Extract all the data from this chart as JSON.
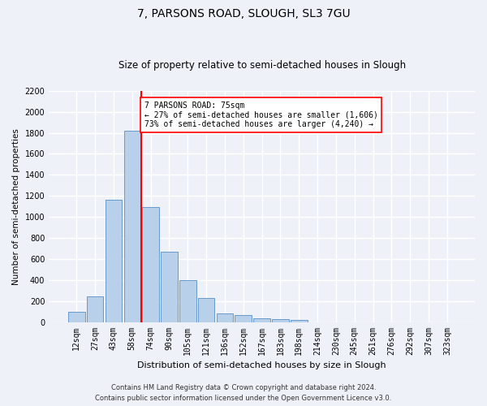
{
  "title": "7, PARSONS ROAD, SLOUGH, SL3 7GU",
  "subtitle": "Size of property relative to semi-detached houses in Slough",
  "xlabel": "Distribution of semi-detached houses by size in Slough",
  "ylabel": "Number of semi-detached properties",
  "categories": [
    "12sqm",
    "27sqm",
    "43sqm",
    "58sqm",
    "74sqm",
    "90sqm",
    "105sqm",
    "121sqm",
    "136sqm",
    "152sqm",
    "167sqm",
    "183sqm",
    "198sqm",
    "214sqm",
    "230sqm",
    "245sqm",
    "261sqm",
    "276sqm",
    "292sqm",
    "307sqm",
    "323sqm"
  ],
  "values": [
    100,
    240,
    1160,
    1820,
    1090,
    670,
    400,
    230,
    80,
    65,
    35,
    25,
    20,
    0,
    0,
    0,
    0,
    0,
    0,
    0,
    0
  ],
  "bar_color": "#b8d0ea",
  "bar_edge_color": "#6699cc",
  "vline_pos": 3.5,
  "vline_color": "red",
  "annotation_text": "7 PARSONS ROAD: 75sqm\n← 27% of semi-detached houses are smaller (1,606)\n73% of semi-detached houses are larger (4,240) →",
  "annotation_box_color": "white",
  "annotation_box_edge_color": "red",
  "ylim": [
    0,
    2200
  ],
  "yticks": [
    0,
    200,
    400,
    600,
    800,
    1000,
    1200,
    1400,
    1600,
    1800,
    2000,
    2200
  ],
  "footer_line1": "Contains HM Land Registry data © Crown copyright and database right 2024.",
  "footer_line2": "Contains public sector information licensed under the Open Government Licence v3.0.",
  "background_color": "#eef2f8",
  "grid_color": "white",
  "title_fontsize": 10,
  "subtitle_fontsize": 8.5,
  "ylabel_fontsize": 7.5,
  "xlabel_fontsize": 8,
  "tick_fontsize": 7,
  "annotation_fontsize": 7,
  "footer_fontsize": 6
}
